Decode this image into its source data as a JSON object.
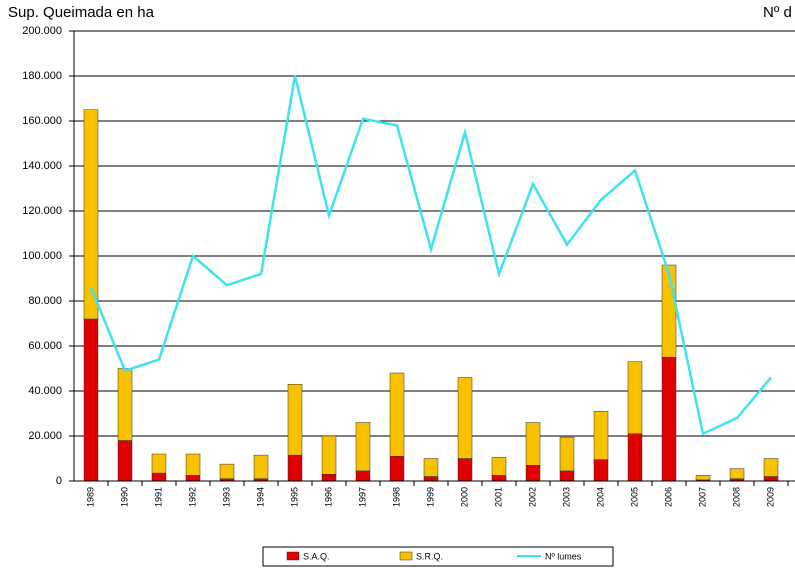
{
  "chart_data": {
    "type": "stacked-bar-line",
    "title": "Sup. Queimada en ha",
    "y2_title": "Nº d",
    "categories": [
      "1989",
      "1990",
      "1991",
      "1992",
      "1993",
      "1994",
      "1995",
      "1996",
      "1997",
      "1998",
      "1999",
      "2000",
      "2001",
      "2002",
      "2003",
      "2004",
      "2005",
      "2006",
      "2007",
      "2008",
      "2009"
    ],
    "series": [
      {
        "name": "S.A.Q.",
        "color": "#e00000",
        "kind": "bar",
        "values": [
          72000,
          18000,
          3500,
          2500,
          1000,
          1000,
          11500,
          3000,
          4500,
          11000,
          2000,
          10000,
          2500,
          7000,
          4500,
          9500,
          21000,
          55000,
          500,
          1000,
          2000
        ]
      },
      {
        "name": "S.R.Q.",
        "color": "#f8c200",
        "kind": "bar",
        "values": [
          93000,
          32000,
          8500,
          9500,
          6500,
          10500,
          31500,
          17000,
          21500,
          37000,
          8000,
          36000,
          8000,
          19000,
          15000,
          21500,
          32000,
          41000,
          2000,
          4500,
          8000
        ]
      },
      {
        "name": "Nº lumes",
        "color": "#3fe3ee",
        "kind": "line",
        "values": [
          86000,
          49000,
          54000,
          100000,
          87000,
          92000,
          180000,
          118000,
          161000,
          158000,
          103000,
          155000,
          92000,
          132000,
          105000,
          125000,
          138000,
          92000,
          21000,
          28000,
          46000
        ]
      }
    ],
    "ylim": [
      0,
      200000
    ],
    "yticks": [
      0,
      {
        "value": 20000,
        "label": "20.000"
      },
      {
        "value": 40000,
        "label": "40.000"
      },
      {
        "value": 60000,
        "label": "60.000"
      },
      {
        "value": 80000,
        "label": "80.000"
      },
      {
        "value": 100000,
        "label": "100.000"
      },
      {
        "value": 120000,
        "label": "120.000"
      },
      {
        "value": 140000,
        "label": "140.000"
      },
      {
        "value": 160000,
        "label": "160.000"
      },
      {
        "value": 180000,
        "label": "180.000"
      },
      {
        "value": 200000,
        "label": "200.000"
      }
    ],
    "grid": true,
    "legend": "bottom"
  }
}
